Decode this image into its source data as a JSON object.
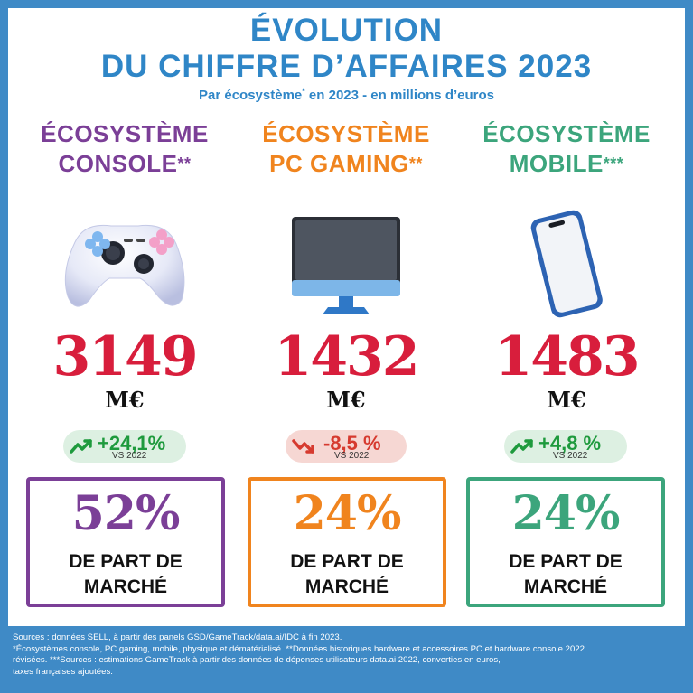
{
  "header": {
    "title_line1": "ÉVOLUTION",
    "title_line2": "DU CHIFFRE D’AFFAIRES 2023",
    "subtitle_a": "Par écosystème",
    "subtitle_sup": "*",
    "subtitle_b": " en 2023 - en millions d’euros"
  },
  "colors": {
    "title": "#2f86c7",
    "console": "#7b3f97",
    "pc": "#f0841e",
    "mobile": "#3ca57c",
    "figure": "#d81e3c",
    "frame": "#3f8ac6"
  },
  "ecosystems": [
    {
      "line1": "ÉCOSYSTÈME",
      "line2": "CONSOLE",
      "mark": "**",
      "icon": "gamepad-icon",
      "revenue": "3149",
      "unit": "M€",
      "change": "+24,1%",
      "change_trend": "up",
      "vs": "VS 2022",
      "share": "52%",
      "share_label_1": "DE PART DE",
      "share_label_2": "MARCHÉ"
    },
    {
      "line1": "ÉCOSYSTÈME",
      "line2": "PC GAMING",
      "mark": "**",
      "icon": "monitor-icon",
      "revenue": "1432",
      "unit": "M€",
      "change": "-8,5 %",
      "change_trend": "down",
      "vs": "VS 2022",
      "share": "24%",
      "share_label_1": "DE PART DE",
      "share_label_2": "MARCHÉ"
    },
    {
      "line1": "ÉCOSYSTÈME",
      "line2": "MOBILE",
      "mark": "***",
      "icon": "smartphone-icon",
      "revenue": "1483",
      "unit": "M€",
      "change": "+4,8 %",
      "change_trend": "up",
      "vs": "VS 2022",
      "share": "24%",
      "share_label_1": "DE PART DE",
      "share_label_2": "MARCHÉ"
    }
  ],
  "footer": {
    "line1": "Sources : données SELL, à partir des panels GSD/GameTrack/data.ai/IDC à fin 2023.",
    "line2": "*Écosystèmes console, PC gaming, mobile, physique et dématérialisé. **Données historiques hardware et accessoires PC et hardware console 2022",
    "line3": "révisées. ***Sources : estimations GameTrack à partir des données de dépenses utilisateurs data.ai 2022, converties en euros,",
    "line4": "taxes françaises ajoutées."
  }
}
